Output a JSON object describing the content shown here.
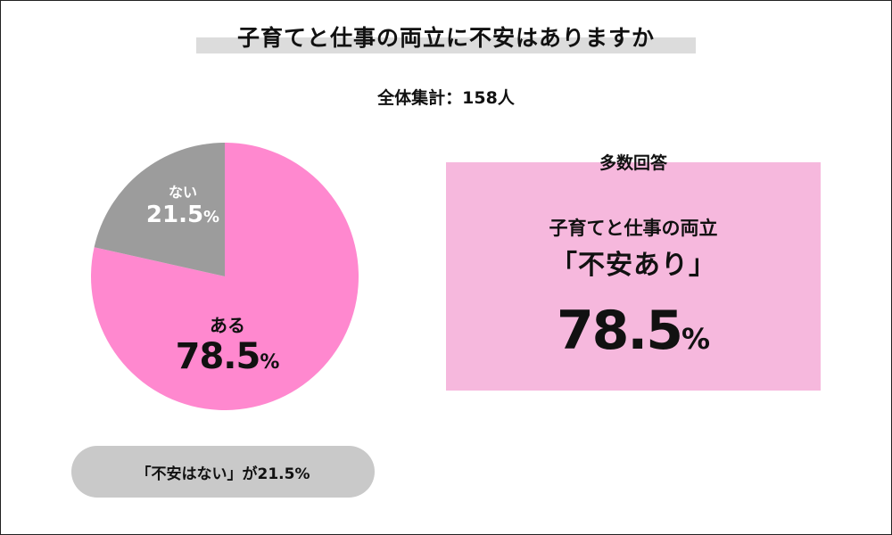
{
  "title": "子育てと仕事の両立に不安はありますか",
  "subtitle": "全体集計：158人",
  "colors": {
    "yes": "#ff88cf",
    "no": "#9c9c9c",
    "panel": "#f6b8dd",
    "pill": "#c9c9c9",
    "title_bar": "#dcdcdc"
  },
  "chart_data": {
    "type": "pie",
    "start": "top, clockwise",
    "slices": [
      {
        "label": "ある",
        "value": 78.5,
        "display": "78.5",
        "unit": "%",
        "color": "#ff88cf"
      },
      {
        "label": "ない",
        "value": 21.5,
        "display": "21.5",
        "unit": "%",
        "color": "#9c9c9c"
      }
    ]
  },
  "note_pill": "「不安はない」が21.5%",
  "panel": {
    "header": "多数回答",
    "line1": "子育てと仕事の両立",
    "line2": "「不安あり」",
    "value": "78.5",
    "unit": "%"
  }
}
